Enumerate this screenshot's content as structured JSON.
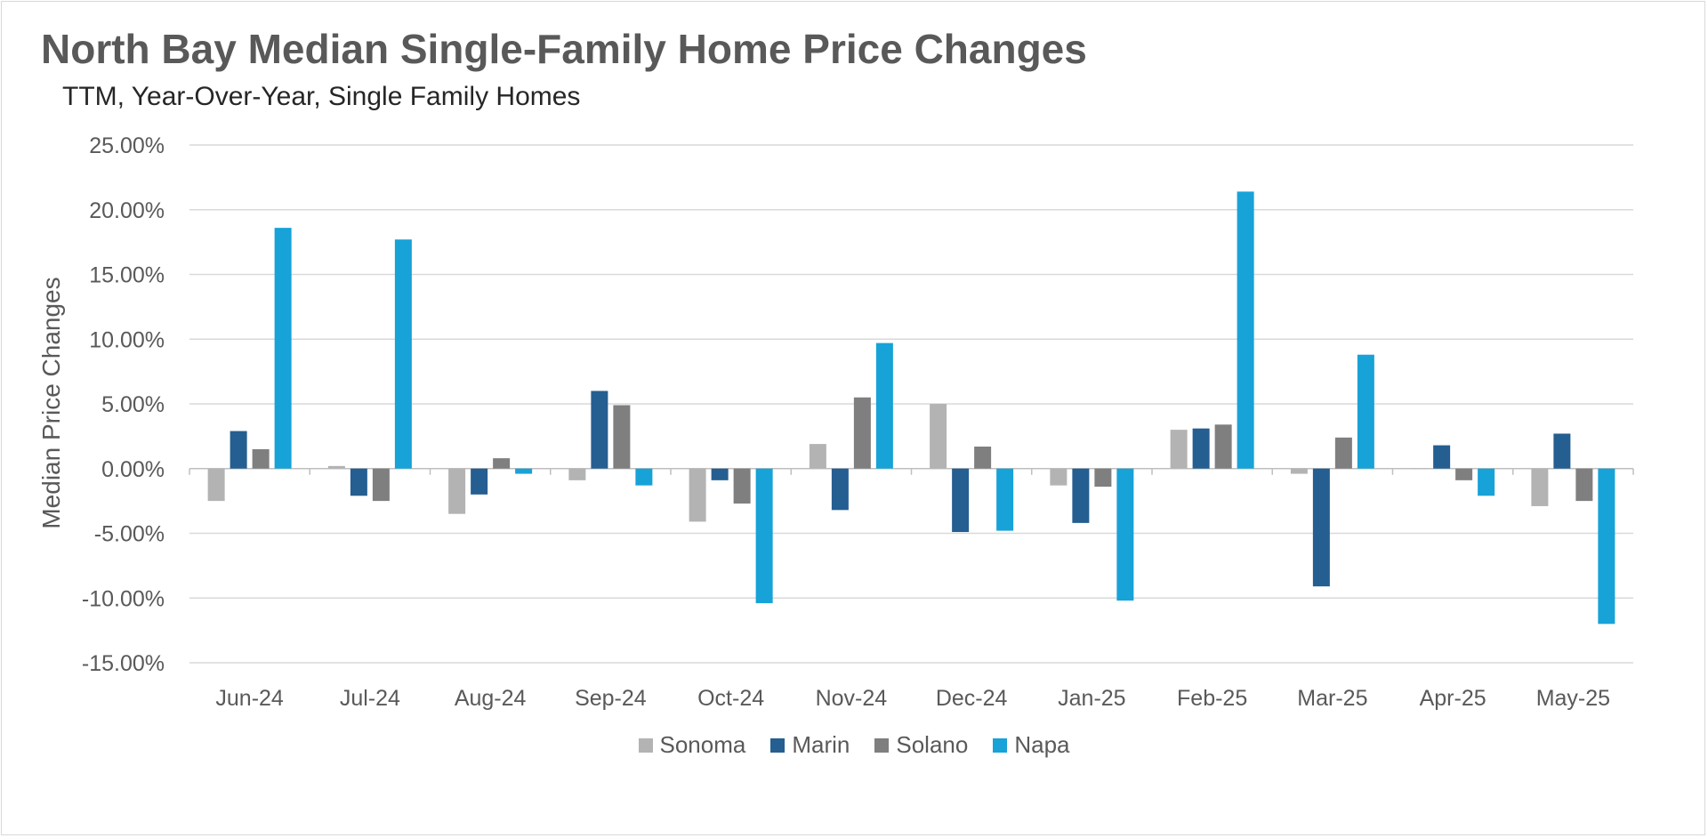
{
  "chart_data": {
    "type": "bar",
    "title": "North Bay Median Single-Family Home Price Changes",
    "subtitle": "TTM, Year-Over-Year, Single Family Homes",
    "xlabel": "",
    "ylabel": "Median Price Changes",
    "ylim": [
      -15,
      25
    ],
    "yticks": [
      25,
      20,
      15,
      10,
      5,
      0,
      -5,
      -10,
      -15
    ],
    "ytick_labels": [
      "25.00%",
      "20.00%",
      "15.00%",
      "10.00%",
      "5.00%",
      "0.00%",
      "-5.00%",
      "-10.00%",
      "-15.00%"
    ],
    "grid": true,
    "legend_position": "bottom",
    "categories": [
      "Jun-24",
      "Jul-24",
      "Aug-24",
      "Sep-24",
      "Oct-24",
      "Nov-24",
      "Dec-24",
      "Jan-25",
      "Feb-25",
      "Mar-25",
      "Apr-25",
      "May-25"
    ],
    "series": [
      {
        "name": "Sonoma",
        "color": "#b3b3b3",
        "values": [
          -2.5,
          0.2,
          -3.5,
          -0.9,
          -4.1,
          1.9,
          5.0,
          -1.3,
          3.0,
          -0.4,
          0.0,
          -2.9
        ]
      },
      {
        "name": "Marin",
        "color": "#255e91",
        "values": [
          2.9,
          -2.1,
          -2.0,
          6.0,
          -0.9,
          -3.2,
          -4.9,
          -4.2,
          3.1,
          -9.1,
          1.8,
          2.7
        ]
      },
      {
        "name": "Solano",
        "color": "#7f7f7f",
        "values": [
          1.5,
          -2.5,
          0.8,
          4.9,
          -2.7,
          5.5,
          1.7,
          -1.4,
          3.4,
          2.4,
          -0.9,
          -2.5
        ]
      },
      {
        "name": "Napa",
        "color": "#17a2d8",
        "values": [
          18.6,
          17.7,
          -0.4,
          -1.3,
          -10.4,
          9.7,
          -4.8,
          -10.2,
          21.4,
          8.8,
          -2.1,
          -12.0
        ]
      }
    ]
  }
}
